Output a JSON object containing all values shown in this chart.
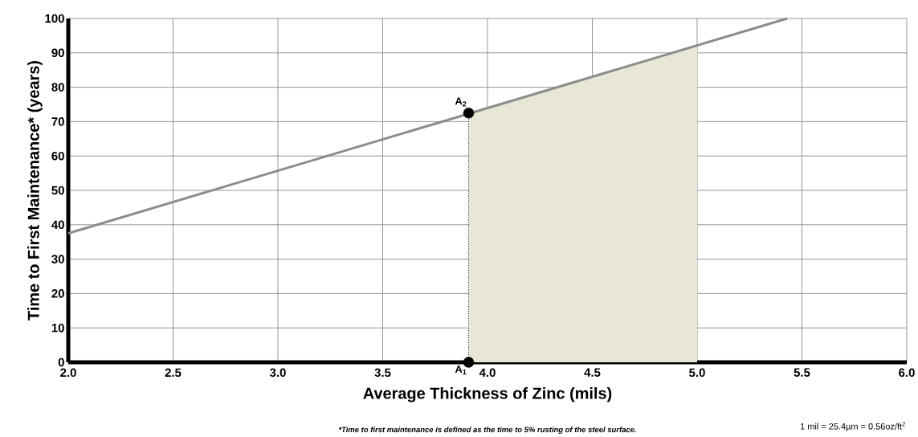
{
  "chart_data": {
    "type": "line",
    "xlabel": "Average Thickness of Zinc (mils)",
    "ylabel": "Time to First Maintenance* (years)",
    "xlim": [
      2,
      6
    ],
    "xticks": [
      {
        "value": 2,
        "label": "2.0"
      },
      2.5,
      {
        "value": 3,
        "label": "3.0"
      },
      3.5,
      {
        "value": 4,
        "label": "4.0"
      },
      4.5,
      {
        "value": 5,
        "label": "5.0"
      },
      5.5,
      {
        "value": 6,
        "label": "6.0"
      }
    ],
    "ylim": [
      0,
      100
    ],
    "yticks": [
      0,
      10,
      20,
      30,
      40,
      50,
      60,
      70,
      80,
      90,
      100
    ],
    "grid": true,
    "marker": "circle",
    "series": [
      {
        "type": "area",
        "color": "#e8e6d5",
        "marker": "none",
        "x": [
          3.91,
          5.0
        ],
        "values": [
          72.5,
          92.3
        ]
      },
      {
        "type": "line",
        "color": "#000000",
        "line_style": "dotted",
        "marker": "none",
        "x": [
          3.91,
          3.91
        ],
        "values": [
          0,
          72.5
        ]
      },
      {
        "type": "line",
        "color": "#8c8c8c",
        "marker": "none",
        "x": [
          2.0,
          5.43
        ],
        "values": [
          37.5,
          100
        ]
      },
      {
        "type": "scatter",
        "color": "#000000",
        "x": [
          3.91,
          3.91
        ],
        "values": [
          0,
          72.5
        ]
      }
    ],
    "annotations": [
      {
        "text": "A$_{2}$",
        "x": 3.91,
        "y": 72.5
      },
      {
        "text": "A$_{1}$",
        "x": 3.91,
        "y": 0
      },
      "*Time to first maintenance is defined as the time to 5% rusting of the steel surface.",
      "1 mil = 25.4µm = 0.56oz/ft$^{2}$"
    ]
  }
}
